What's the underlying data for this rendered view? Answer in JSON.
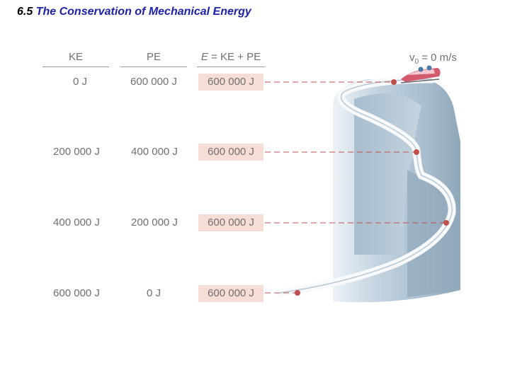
{
  "title": {
    "number": "6.5",
    "text": "The Conservation of Mechanical Energy"
  },
  "table": {
    "headers": {
      "ke": "KE",
      "pe": "PE",
      "total_e": "E",
      "total_rest": " = KE + PE"
    },
    "rows": [
      {
        "ke": "0 J",
        "pe": "600 000 J",
        "total": "600 000 J"
      },
      {
        "ke": "200 000 J",
        "pe": "400 000 J",
        "total": "600 000 J"
      },
      {
        "ke": "400 000 J",
        "pe": "200 000 J",
        "total": "600 000 J"
      },
      {
        "ke": "600 000 J",
        "pe": "0 J",
        "total": "600 000 J"
      }
    ]
  },
  "initial_speed": {
    "label": "v",
    "subscript": "0",
    "value": " = 0 m/s"
  },
  "colors": {
    "title_blue": "#1e22a8",
    "total_highlight": "#f6ddd6",
    "marker": "#c0504d",
    "track_shadow": "#a9bdcc",
    "track_light": "#e9eff4",
    "sled": "#d45a6e"
  },
  "figure": {
    "description_icon": "bobsled-icon"
  }
}
